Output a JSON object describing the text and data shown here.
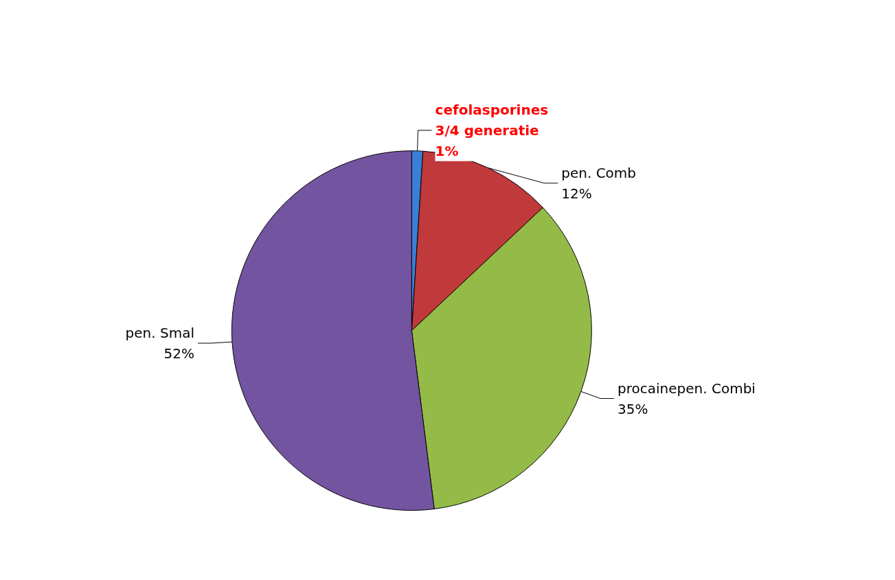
{
  "chart_data": {
    "type": "pie",
    "categories": [
      "cefolasporines 3/4 generatie",
      "pen. Comb",
      "procainepen. Combi",
      "pen. Smal"
    ],
    "values": [
      1,
      12,
      35,
      52
    ],
    "value_labels": [
      "1%",
      "12%",
      "35%",
      "52%"
    ],
    "colors": [
      "#3a7fd5",
      "#c0393b",
      "#94bb47",
      "#7354a0"
    ],
    "legend": false
  }
}
